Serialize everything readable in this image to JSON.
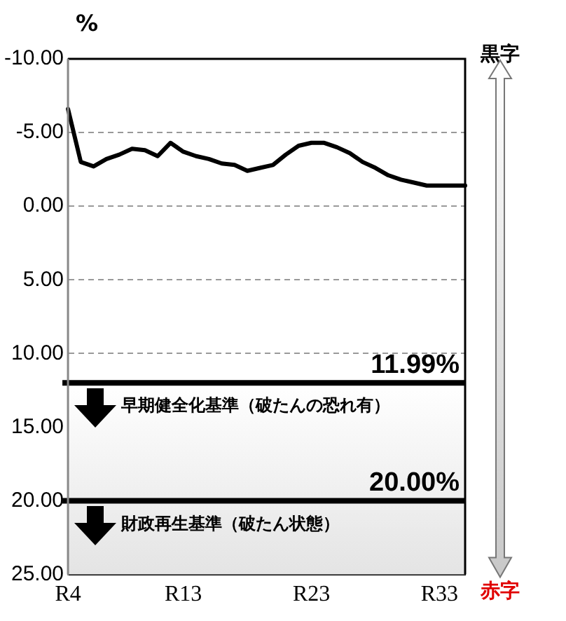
{
  "chart_data": {
    "type": "line",
    "ylabel": "%",
    "categories": [
      "R4",
      null,
      null,
      null,
      null,
      null,
      null,
      null,
      null,
      "R13",
      null,
      null,
      null,
      null,
      null,
      null,
      null,
      null,
      null,
      "R23",
      null,
      null,
      null,
      null,
      null,
      null,
      null,
      null,
      null,
      "R33",
      null,
      null
    ],
    "series": [
      {
        "color": "#000000",
        "values": [
          -6.6,
          -3.0,
          -2.7,
          -3.2,
          -3.5,
          -3.9,
          -3.8,
          -3.4,
          -4.3,
          -3.7,
          -3.4,
          -3.2,
          -2.9,
          -2.8,
          -2.4,
          -2.6,
          -2.8,
          -3.5,
          -4.1,
          -4.3,
          -4.3,
          -4.0,
          -3.6,
          -3.0,
          -2.6,
          -2.1,
          -1.8,
          -1.6,
          -1.4,
          -1.4,
          -1.4,
          -1.4
        ]
      }
    ],
    "ylim": [
      25,
      -10
    ],
    "yticks": [
      {
        "value": -10,
        "label": "-10.00"
      },
      {
        "value": -5,
        "label": "-5.00"
      },
      {
        "value": 0,
        "label": "0.00"
      },
      {
        "value": 5,
        "label": "5.00"
      },
      {
        "value": 10,
        "label": "10.00"
      },
      {
        "value": 15,
        "label": "15.00"
      },
      {
        "value": 20,
        "label": "20.00"
      },
      {
        "value": 25,
        "label": "25.00"
      }
    ],
    "grid": "y",
    "legend": false,
    "marker": "none",
    "line_style": "solid",
    "bands": [
      {
        "axis": "y",
        "from": 11.99,
        "to": 25,
        "color": "#e4e4e4"
      }
    ],
    "ref_lines": [
      {
        "axis": "y",
        "value": 11.99,
        "label": "11.99%",
        "color": "#000000"
      },
      {
        "axis": "y",
        "value": 20,
        "label": "20.00%",
        "color": "#000000"
      }
    ],
    "annotations": [
      {
        "text": "早期健全化基準（破たんの恐れ有）",
        "y": 11.99
      },
      {
        "text": "財政再生基準（破たん状態）",
        "y": 20
      },
      "黒字",
      "赤字"
    ]
  }
}
